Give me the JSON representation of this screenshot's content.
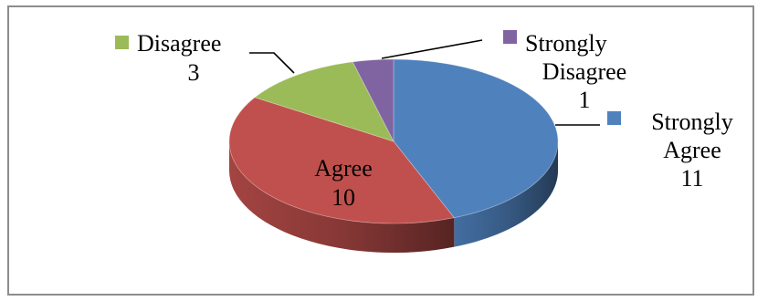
{
  "chart_data": {
    "type": "pie",
    "title": "",
    "three_d": true,
    "legend": "none",
    "categories": [
      "Strongly Agree",
      "Agree",
      "Disagree",
      "Strongly Disagree"
    ],
    "values": [
      11,
      10,
      3,
      1
    ],
    "colors": [
      "#4F81BD",
      "#C0504D",
      "#9BBB59",
      "#8064A2"
    ],
    "label_lines": [
      [
        "Strongly",
        "Agree",
        "11"
      ],
      [
        "Agree",
        "10"
      ],
      [
        "Disagree",
        "3"
      ],
      [
        "Strongly",
        "Disagree",
        "1"
      ]
    ]
  }
}
